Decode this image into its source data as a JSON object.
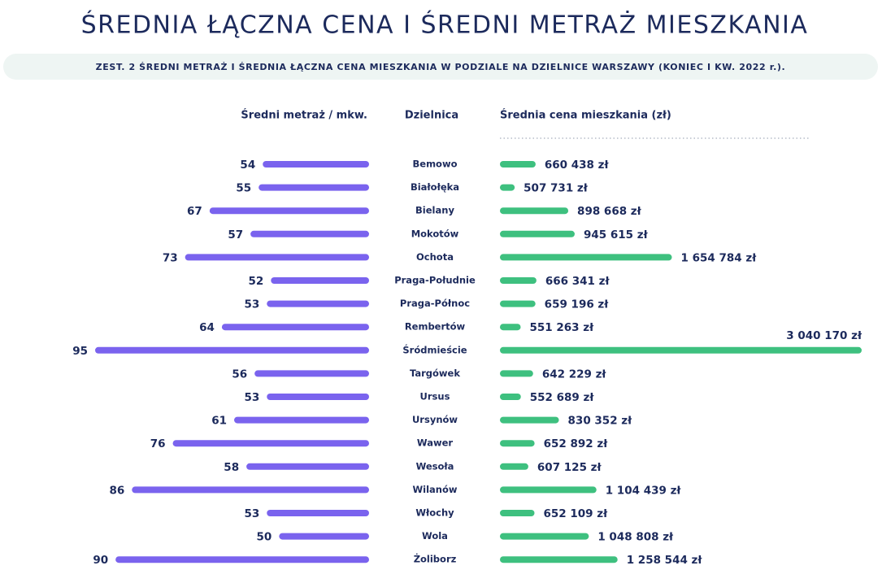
{
  "chart_data": {
    "type": "butterfly",
    "title": "ŚREDNIA ŁĄCZNA CENA I ŚREDNI METRAŻ MIESZKANIA",
    "subtitle": "ZEST. 2 ŚREDNI METRAŻ I ŚREDNIA ŁĄCZNA CENA MIESZKANIA W PODZIALE NA DZIELNICE WARSZAWY (KONIEC I KW. 2022 r.).",
    "category_label": "Dzielnica",
    "categories": [
      "Bemowo",
      "Białołęka",
      "Bielany",
      "Mokotów",
      "Ochota",
      "Praga-Południe",
      "Praga-Północ",
      "Rembertów",
      "Śródmieście",
      "Targówek",
      "Ursus",
      "Ursynów",
      "Wawer",
      "Wesoła",
      "Wilanów",
      "Włochy",
      "Wola",
      "Żoliborz"
    ],
    "series": [
      {
        "name": "Średni metraż / mkw.",
        "color": "#7a63ee",
        "xlim": [
          28,
          95
        ],
        "values": [
          54,
          55,
          67,
          57,
          73,
          52,
          53,
          64,
          95,
          56,
          53,
          61,
          76,
          58,
          86,
          53,
          50,
          90
        ]
      },
      {
        "name": "Średnia cena mieszkania (zł)",
        "color": "#3ec07f",
        "xlim": [
          400000,
          3040170
        ],
        "values": [
          660438,
          507731,
          898668,
          945615,
          1654784,
          666341,
          659196,
          551263,
          3040170,
          642229,
          552689,
          830352,
          652892,
          607125,
          1104439,
          652109,
          1048808,
          1258544
        ],
        "value_labels": [
          "660 438 zł",
          "507 731 zł",
          "898 668 zł",
          "945 615 zł",
          "1 654 784 zł",
          "666 341 zł",
          "659 196 zł",
          "551 263 zł",
          "3 040 170 zł",
          "642 229 zł",
          "552 689 zł",
          "830 352 zł",
          "652 892 zł",
          "607 125 zł",
          "1 104 439 zł",
          "652 109 zł",
          "1 048 808 zł",
          "1 258 544 zł"
        ]
      }
    ]
  }
}
